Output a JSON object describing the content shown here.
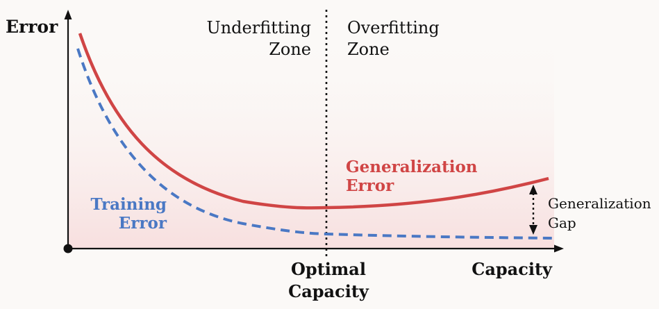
{
  "axes": {
    "y_label": "Error",
    "x_label": "Capacity"
  },
  "zones": {
    "underfitting": [
      "Underfitting",
      "Zone"
    ],
    "overfitting": [
      "Overfitting",
      "Zone"
    ]
  },
  "optimal": [
    "Optimal",
    "Capacity"
  ],
  "curves": {
    "generalization": {
      "label": [
        "Generalization",
        "Error"
      ],
      "color": "#d04545"
    },
    "training": {
      "label": [
        "Training",
        "Error"
      ],
      "color": "#4a78c4"
    }
  },
  "gap": [
    "Generalization",
    "Gap"
  ]
}
